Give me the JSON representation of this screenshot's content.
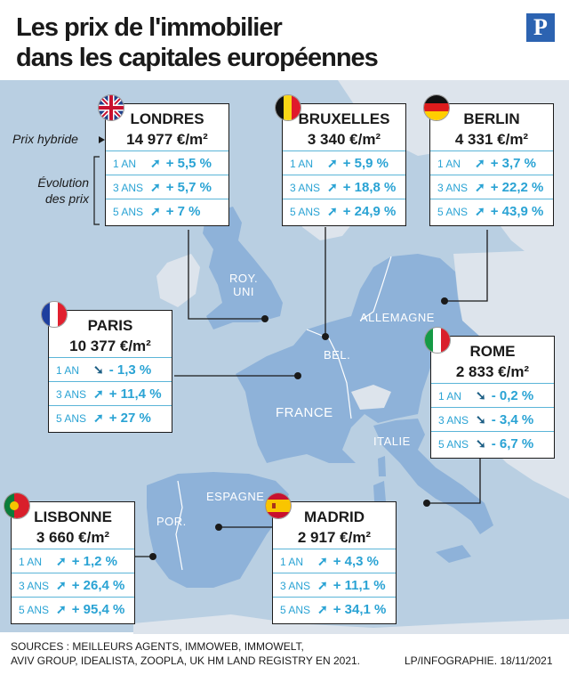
{
  "title": {
    "line1": "Les prix de l'immobilier",
    "line2": "dans les capitales européennes"
  },
  "logo": "P",
  "legend": {
    "hybrid": "Prix hybride",
    "evolution_1": "Évolution",
    "evolution_2": "des prix"
  },
  "countries": {
    "uk_1": "ROY.",
    "uk_2": "UNI",
    "germany": "ALLEMAGNE",
    "belgium": "BEL.",
    "france": "FRANCE",
    "italy": "ITALIE",
    "spain": "ESPAGNE",
    "portugal": "POR."
  },
  "cities": {
    "londres": {
      "name": "LONDRES",
      "price": "14 977 €/m²",
      "rows": [
        {
          "p": "1 AN",
          "v": "+ 5,5 %"
        },
        {
          "p": "3 ANS",
          "v": "+ 5,7 %"
        },
        {
          "p": "5 ANS",
          "v": "+ 7 %"
        }
      ]
    },
    "bruxelles": {
      "name": "BRUXELLES",
      "price": "3 340 €/m²",
      "rows": [
        {
          "p": "1 AN",
          "v": "+ 5,9 %"
        },
        {
          "p": "3 ANS",
          "v": "+ 18,8 %"
        },
        {
          "p": "5 ANS",
          "v": "+ 24,9 %"
        }
      ]
    },
    "berlin": {
      "name": "BERLIN",
      "price": "4 331 €/m²",
      "rows": [
        {
          "p": "1 AN",
          "v": "+ 3,7 %"
        },
        {
          "p": "3 ANS",
          "v": "+ 22,2 %"
        },
        {
          "p": "5 ANS",
          "v": "+ 43,9 %"
        }
      ]
    },
    "paris": {
      "name": "PARIS",
      "price": "10 377 €/m²",
      "rows": [
        {
          "p": "1 AN",
          "v": "- 1,3 %"
        },
        {
          "p": "3 ANS",
          "v": "+ 11,4 %"
        },
        {
          "p": "5 ANS",
          "v": "+ 27 %"
        }
      ]
    },
    "rome": {
      "name": "ROME",
      "price": "2 833 €/m²",
      "rows": [
        {
          "p": "1 AN",
          "v": "- 0,2 %"
        },
        {
          "p": "3 ANS",
          "v": "- 3,4 %"
        },
        {
          "p": "5 ANS",
          "v": "- 6,7 %"
        }
      ]
    },
    "lisbonne": {
      "name": "LISBONNE",
      "price": "3 660 €/m²",
      "rows": [
        {
          "p": "1 AN",
          "v": "+ 1,2 %"
        },
        {
          "p": "3 ANS",
          "v": "+ 26,4 %"
        },
        {
          "p": "5 ANS",
          "v": "+ 95,4 %"
        }
      ]
    },
    "madrid": {
      "name": "MADRID",
      "price": "2 917 €/m²",
      "rows": [
        {
          "p": "1 AN",
          "v": "+ 4,3 %"
        },
        {
          "p": "3 ANS",
          "v": "+ 11,1 %"
        },
        {
          "p": "5 ANS",
          "v": "+ 34,1 %"
        }
      ]
    }
  },
  "footer": {
    "sources_1": "SOURCES : MEILLEURS AGENTS, IMMOWEB, IMMOWELT,",
    "sources_2": "AVIV GROUP, IDEALISTA, ZOOPLA, UK HM LAND REGISTRY EN 2021.",
    "credit": "LP/INFOGRAPHIE.  18/11/2021"
  },
  "colors": {
    "sea": "#b9cfe2",
    "land_highlight": "#8eb2d9",
    "land_other": "#dde4ec",
    "accent_text": "#2aa3d4",
    "down_arrow": "#1d5f85"
  }
}
